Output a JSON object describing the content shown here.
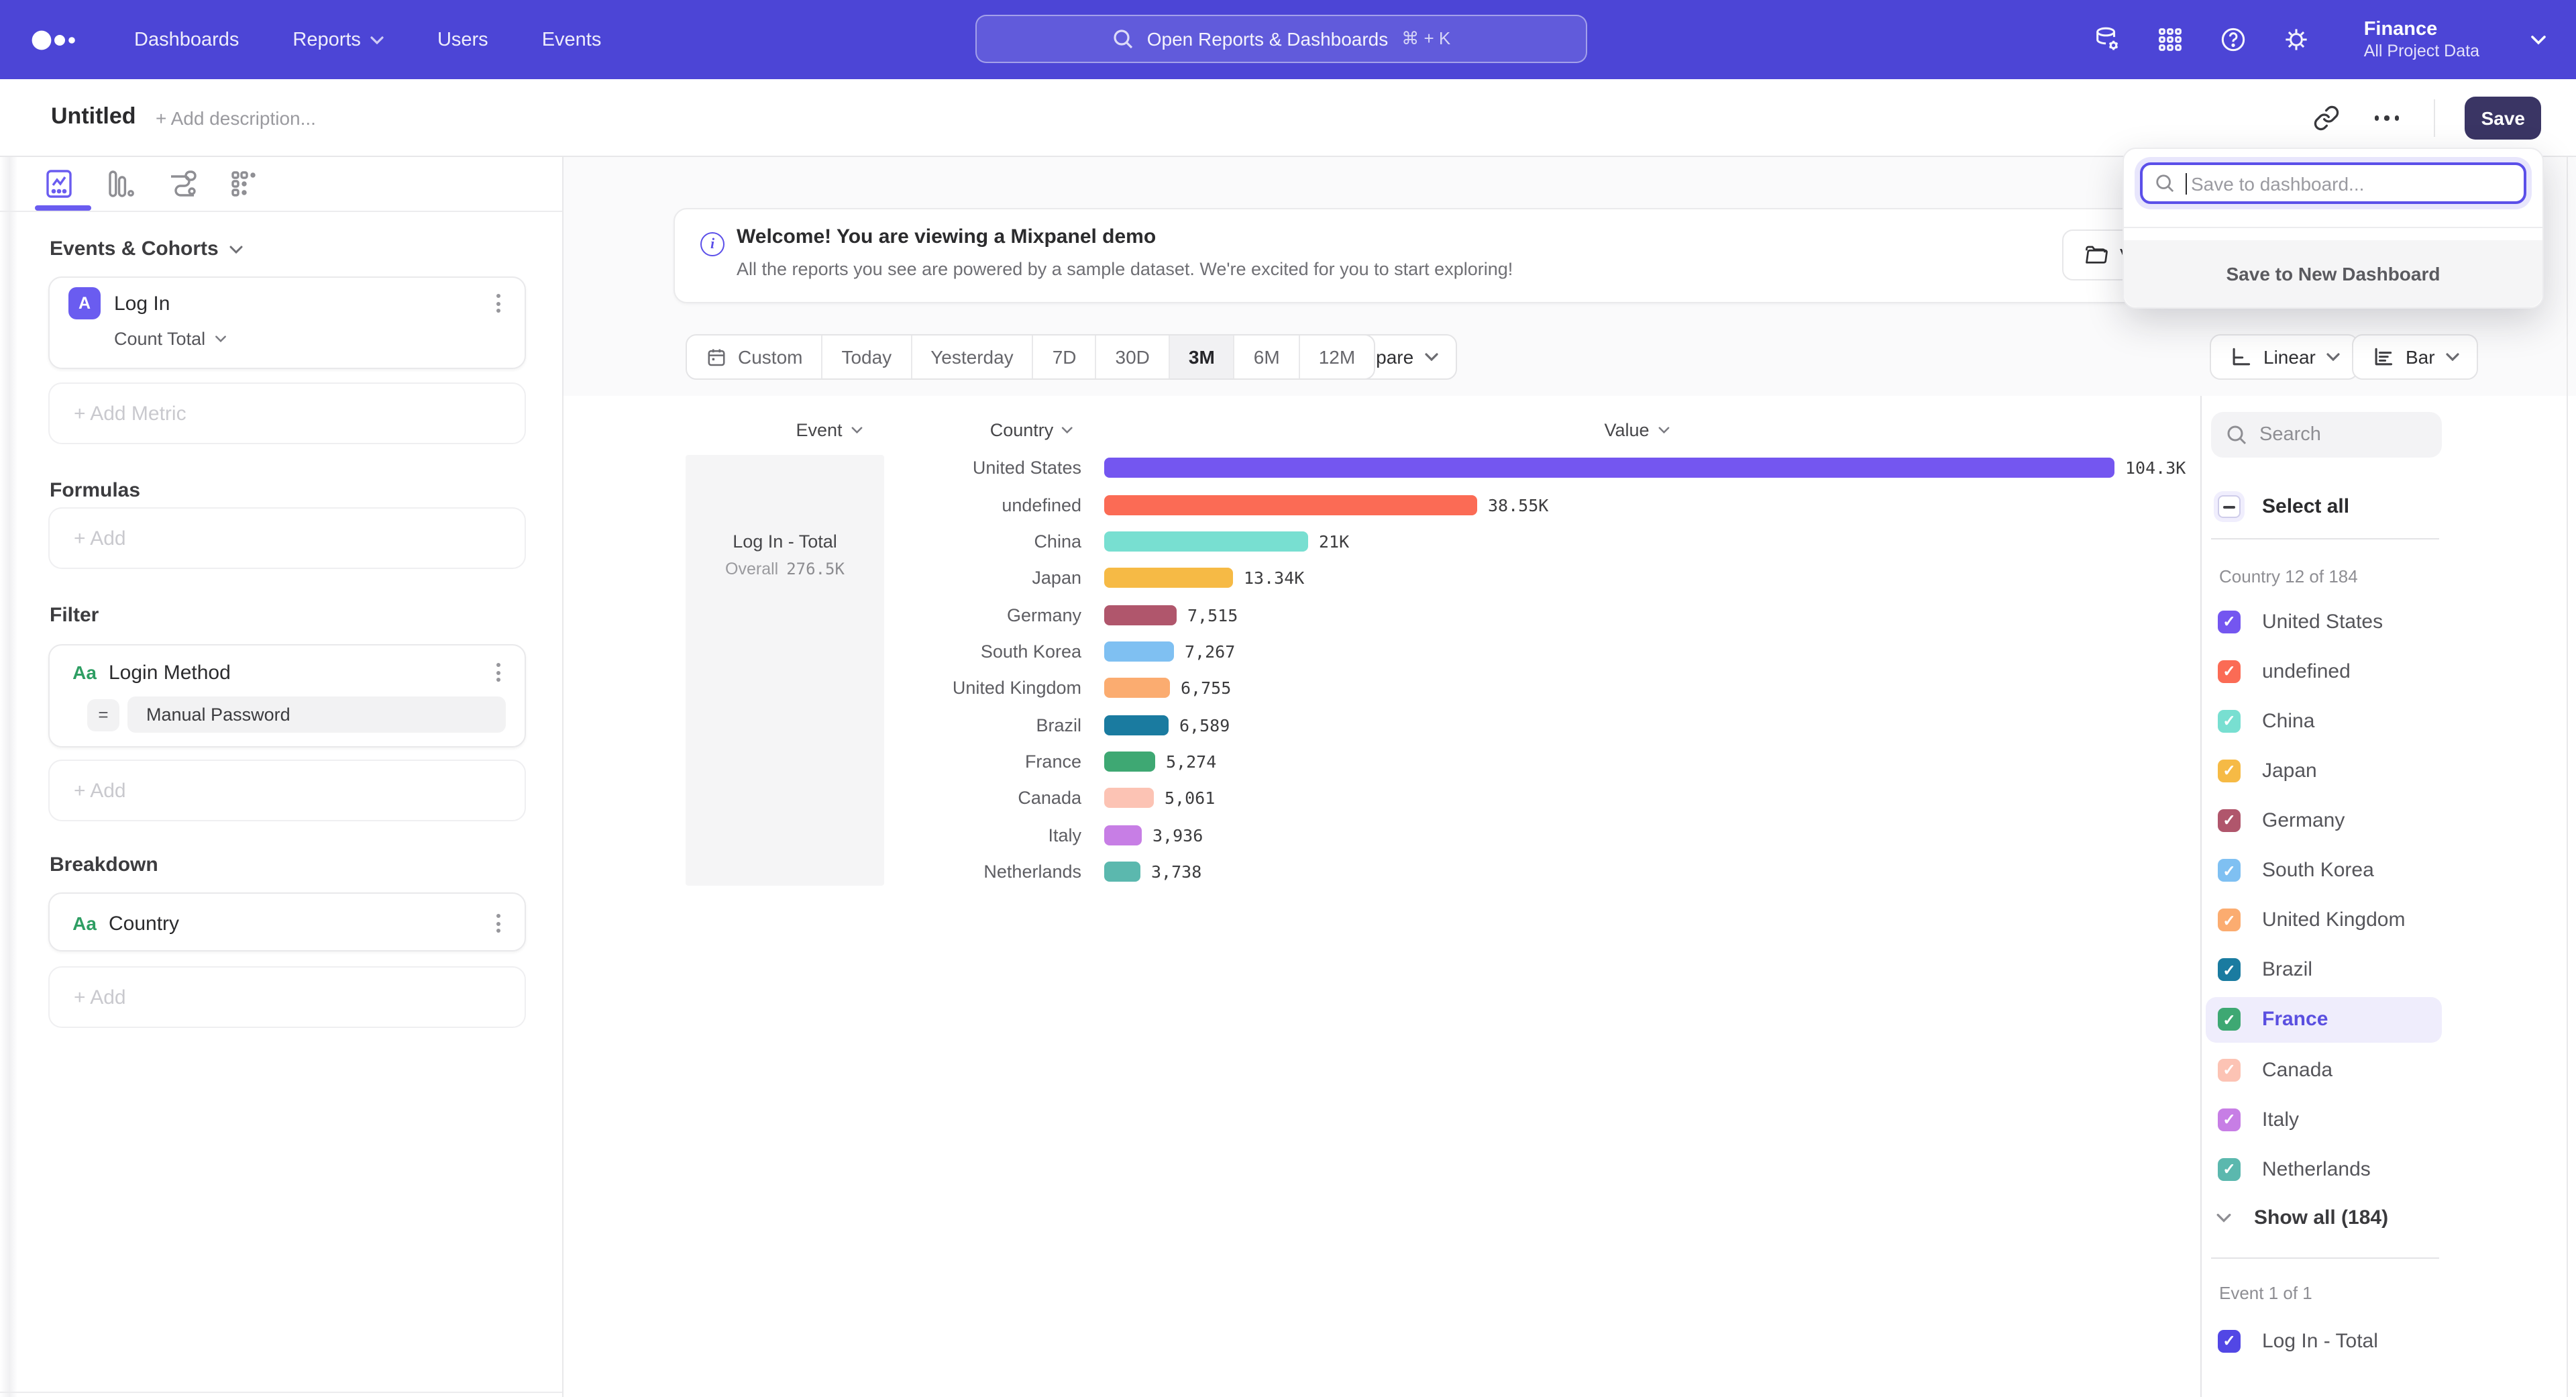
{
  "navbar": {
    "nav_items": [
      {
        "label": "Dashboards",
        "has_menu": false
      },
      {
        "label": "Reports",
        "has_menu": true
      },
      {
        "label": "Users",
        "has_menu": false
      },
      {
        "label": "Events",
        "has_menu": false
      }
    ],
    "search": {
      "placeholder": "Open Reports & Dashboards",
      "shortcut": "⌘ + K"
    },
    "project": {
      "name": "Finance",
      "scope": "All Project Data"
    }
  },
  "titlebar": {
    "title": "Untitled",
    "description_placeholder": "+ Add description...",
    "save_label": "Save"
  },
  "save_popover": {
    "search_placeholder": "Save to dashboard...",
    "new_dashboard_label": "Save to New Dashboard"
  },
  "banner": {
    "title": "Welcome! You are viewing a Mixpanel demo",
    "subtitle": "All the reports you see are powered by a sample dataset. We're excited for you to start exploring!",
    "side_button_partial": "V"
  },
  "builder": {
    "events_heading": "Events & Cohorts",
    "metric": {
      "badge": "A",
      "name": "Log In",
      "aggregation": "Count Total"
    },
    "add_metric_label": "+ Add Metric",
    "formulas_heading": "Formulas",
    "add_label": "+ Add",
    "filter_heading": "Filter",
    "filter": {
      "badge": "Aa",
      "name": "Login Method",
      "operator": "=",
      "value": "Manual Password"
    },
    "breakdown_heading": "Breakdown",
    "breakdown": {
      "badge": "Aa",
      "name": "Country"
    }
  },
  "toolbar": {
    "ranges": [
      "Custom",
      "Today",
      "Yesterday",
      "7D",
      "30D",
      "3M",
      "6M",
      "12M"
    ],
    "selected_range": "3M",
    "compare_label": "Compare",
    "scale_label": "Linear",
    "chart_type_label": "Bar"
  },
  "chart_data": {
    "type": "bar",
    "orientation": "horizontal",
    "title": "",
    "columns": [
      "Event",
      "Country",
      "Value"
    ],
    "event": {
      "name": "Log In - Total",
      "overall_label": "Overall",
      "overall_value": "276.5K"
    },
    "categories": [
      "United States",
      "undefined",
      "China",
      "Japan",
      "Germany",
      "South Korea",
      "United Kingdom",
      "Brazil",
      "France",
      "Canada",
      "Italy",
      "Netherlands"
    ],
    "values": [
      104300,
      38550,
      21000,
      13340,
      7515,
      7267,
      6755,
      6589,
      5274,
      5061,
      3936,
      3738
    ],
    "value_labels": [
      "104.3K",
      "38.55K",
      "21K",
      "13.34K",
      "7,515",
      "7,267",
      "6,755",
      "6,589",
      "5,274",
      "5,061",
      "3,936",
      "3,738"
    ],
    "colors": [
      "#7456F0",
      "#FB6B55",
      "#78DFD1",
      "#F6BA45",
      "#B0566C",
      "#7FC0F2",
      "#FBAC70",
      "#1A7BA0",
      "#3EA873",
      "#FCC3B4",
      "#C77EE5",
      "#5BB8AE"
    ],
    "xlim": [
      0,
      110000
    ],
    "legend": "none",
    "grid": false
  },
  "filter_panel": {
    "search_placeholder": "Search",
    "select_all_label": "Select all",
    "select_all_state": "indeterminate",
    "group_label": "Country 12 of 184",
    "highlighted_item": "France",
    "show_all_label": "Show all (184)",
    "event_group_label": "Event 1 of 1",
    "event_item": {
      "label": "Log In - Total",
      "color": "#5247E5",
      "checked": true
    }
  },
  "accent_colors": {
    "nav": "#4C45D6",
    "primary": "#5A4FE0",
    "save_button": "#3A3564"
  }
}
